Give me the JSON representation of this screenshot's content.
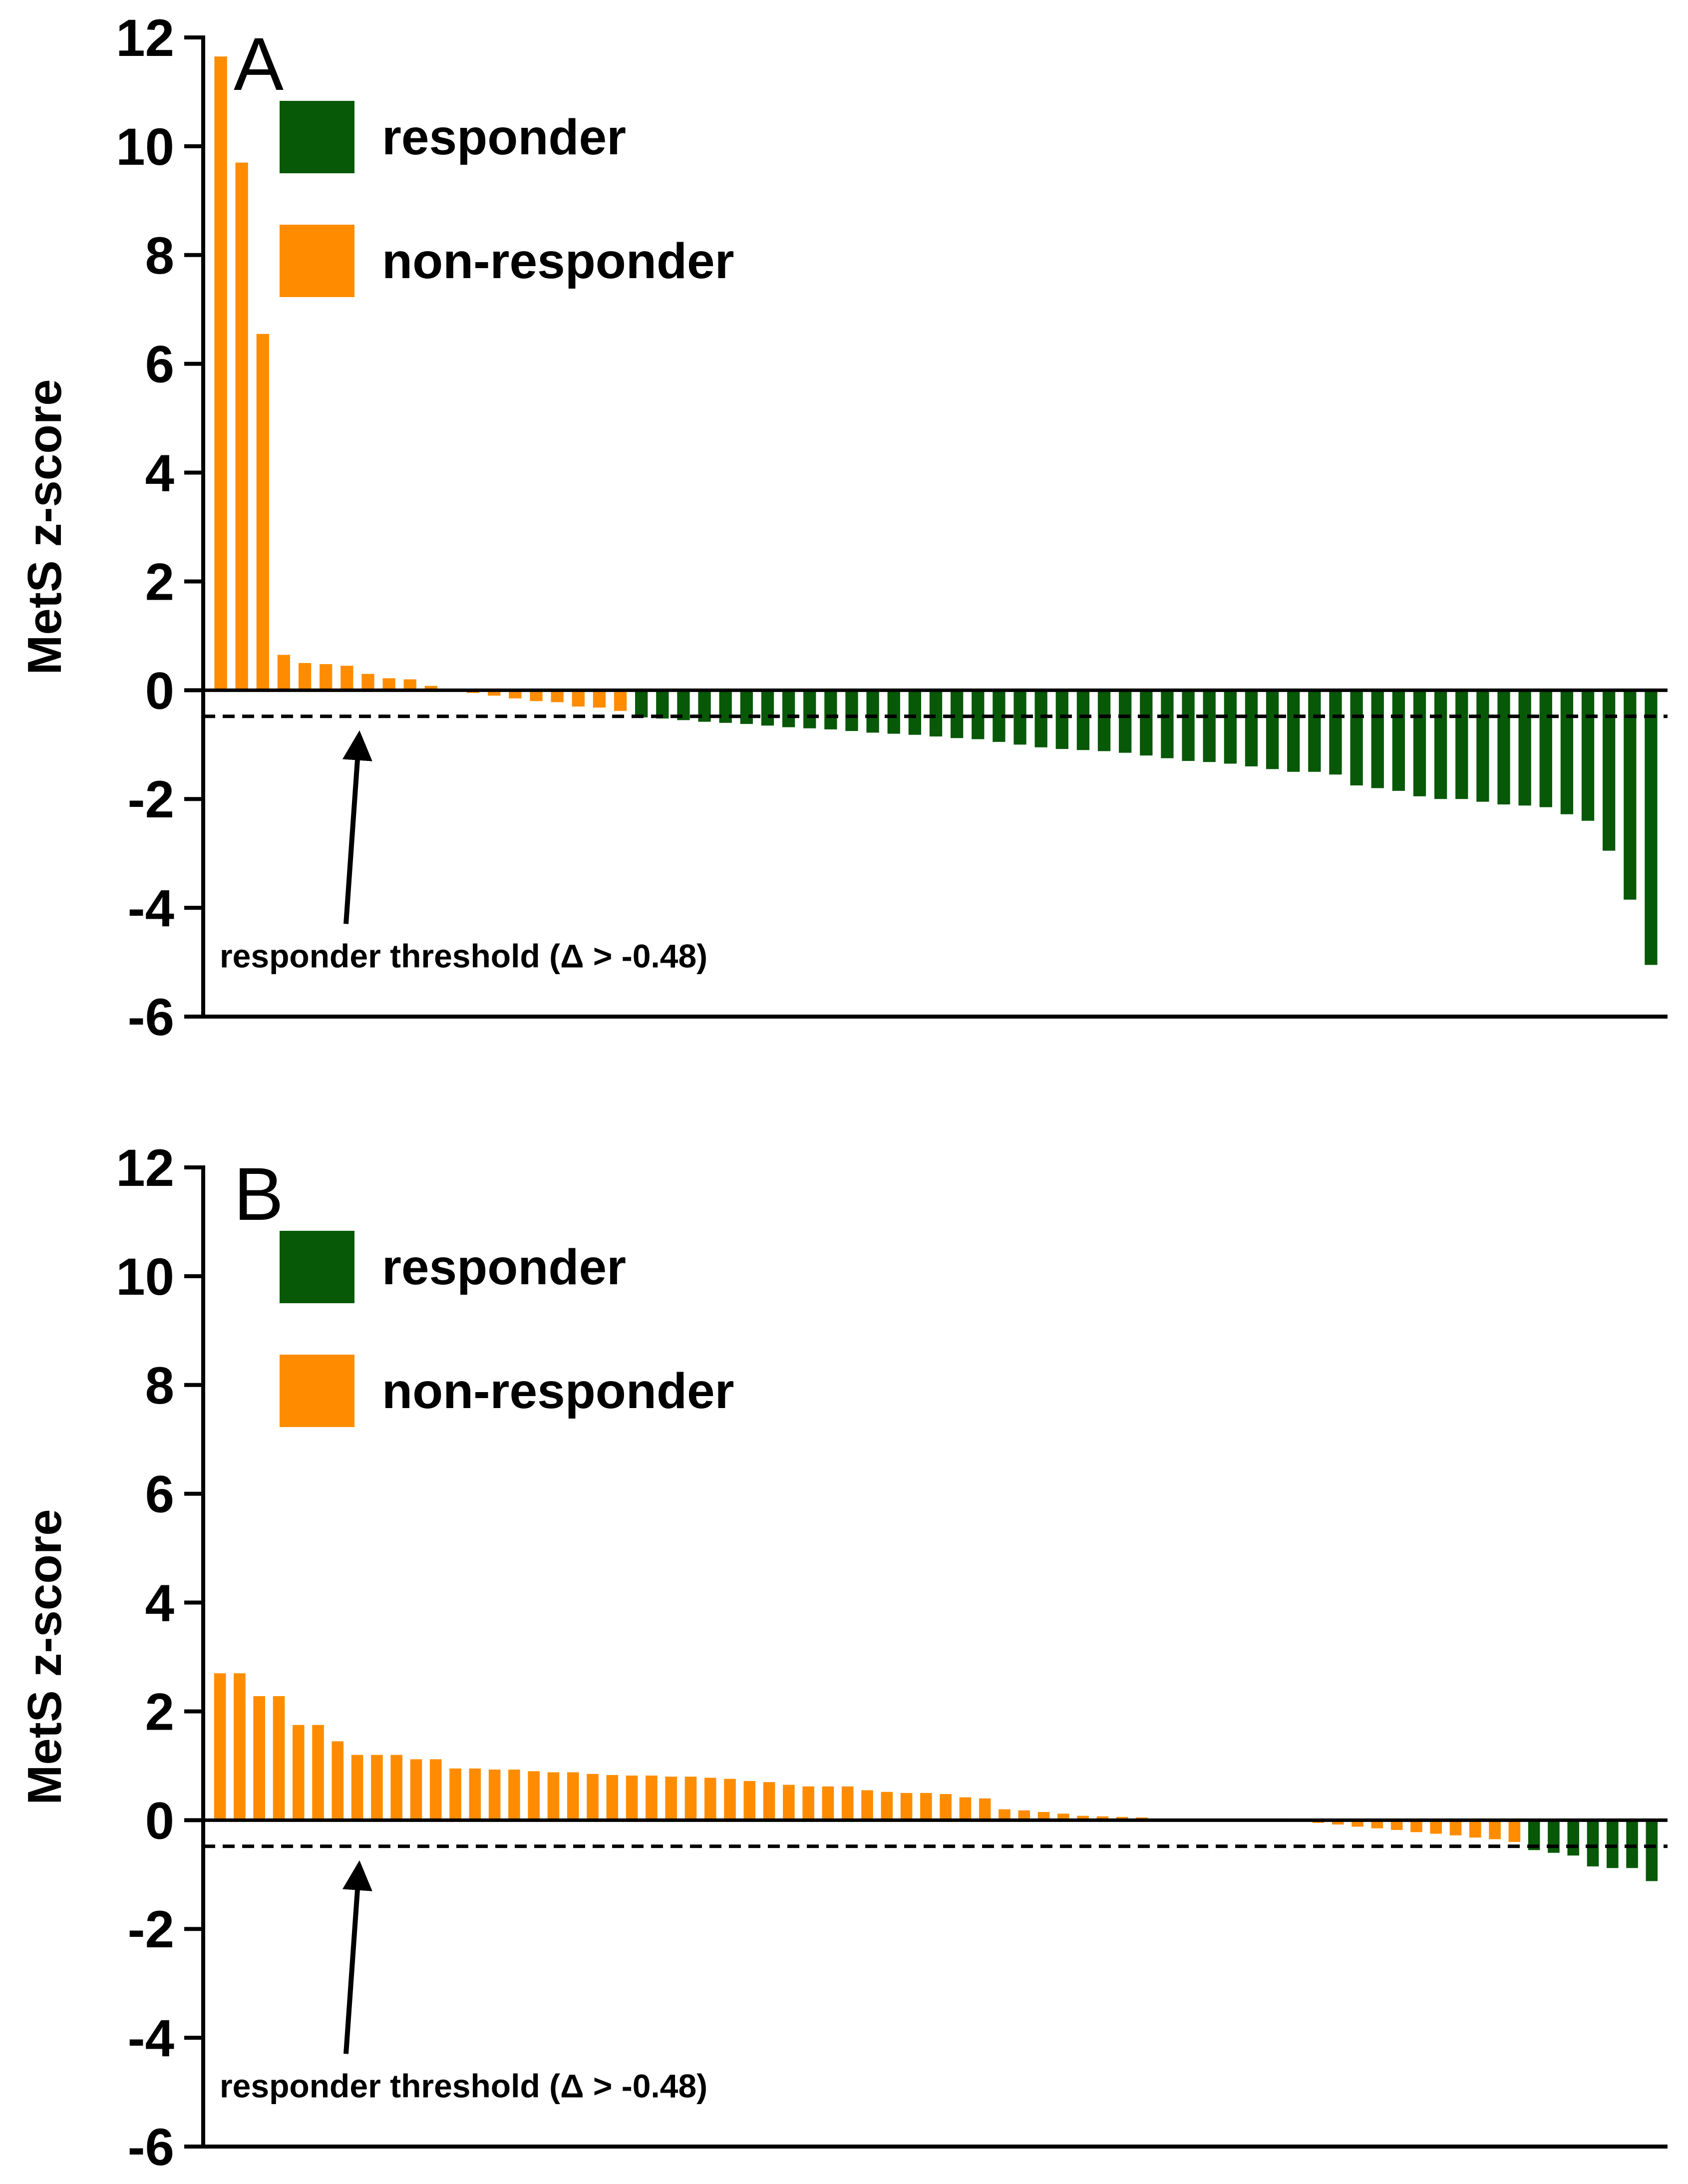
{
  "colors": {
    "responder": "#075807",
    "non_responder": "#ff8c00"
  },
  "chart_data": [
    {
      "type": "bar",
      "panel": "A",
      "ylabel": "MetS z-score",
      "xlabel": "",
      "ylim": [
        -6,
        12
      ],
      "yticks": [
        -6,
        -4,
        -2,
        0,
        2,
        4,
        6,
        8,
        10,
        12
      ],
      "threshold": -0.48,
      "threshold_label": "responder threshold (Δ > -0.48)",
      "legend": [
        {
          "label": "responder",
          "color": "#075807"
        },
        {
          "label": "non-responder",
          "color": "#ff8c00"
        }
      ],
      "series": [
        {
          "name": "non-responder",
          "values": [
            11.65,
            9.7,
            6.55,
            0.65,
            0.5,
            0.48,
            0.45,
            0.3,
            0.22,
            0.2,
            0.08,
            0.0,
            -0.05,
            -0.1,
            -0.15,
            -0.2,
            -0.22,
            -0.3,
            -0.32,
            -0.38
          ]
        },
        {
          "name": "responder",
          "values": [
            -0.5,
            -0.52,
            -0.55,
            -0.58,
            -0.6,
            -0.62,
            -0.65,
            -0.68,
            -0.7,
            -0.72,
            -0.75,
            -0.78,
            -0.8,
            -0.82,
            -0.85,
            -0.88,
            -0.9,
            -0.95,
            -1.0,
            -1.05,
            -1.08,
            -1.1,
            -1.12,
            -1.15,
            -1.2,
            -1.25,
            -1.3,
            -1.32,
            -1.35,
            -1.4,
            -1.45,
            -1.5,
            -1.5,
            -1.55,
            -1.75,
            -1.8,
            -1.85,
            -1.95,
            -2.0,
            -2.0,
            -2.05,
            -2.1,
            -2.12,
            -2.15,
            -2.28,
            -2.4,
            -2.95,
            -3.85,
            -5.05
          ]
        }
      ]
    },
    {
      "type": "bar",
      "panel": "B",
      "ylabel": "MetS z-score",
      "xlabel": "",
      "ylim": [
        -6,
        12
      ],
      "yticks": [
        -6,
        -4,
        -2,
        0,
        2,
        4,
        6,
        8,
        10,
        12
      ],
      "threshold": -0.48,
      "threshold_label": "responder threshold (Δ > -0.48)",
      "legend": [
        {
          "label": "responder",
          "color": "#075807"
        },
        {
          "label": "non-responder",
          "color": "#ff8c00"
        }
      ],
      "series": [
        {
          "name": "non-responder",
          "values": [
            2.7,
            2.7,
            2.28,
            2.28,
            1.75,
            1.75,
            1.45,
            1.2,
            1.2,
            1.2,
            1.12,
            1.12,
            0.95,
            0.95,
            0.93,
            0.93,
            0.9,
            0.88,
            0.88,
            0.85,
            0.83,
            0.82,
            0.82,
            0.8,
            0.8,
            0.78,
            0.76,
            0.72,
            0.7,
            0.65,
            0.62,
            0.62,
            0.62,
            0.55,
            0.52,
            0.5,
            0.5,
            0.48,
            0.42,
            0.4,
            0.2,
            0.18,
            0.15,
            0.12,
            0.08,
            0.07,
            0.06,
            0.05,
            0.03,
            0.01,
            0.0,
            0.0,
            0.0,
            0.0,
            0.0,
            -0.03,
            -0.05,
            -0.08,
            -0.12,
            -0.15,
            -0.18,
            -0.22,
            -0.25,
            -0.28,
            -0.32,
            -0.35,
            -0.4
          ]
        },
        {
          "name": "responder",
          "values": [
            -0.55,
            -0.6,
            -0.65,
            -0.85,
            -0.88,
            -0.88,
            -1.12
          ]
        }
      ]
    }
  ]
}
